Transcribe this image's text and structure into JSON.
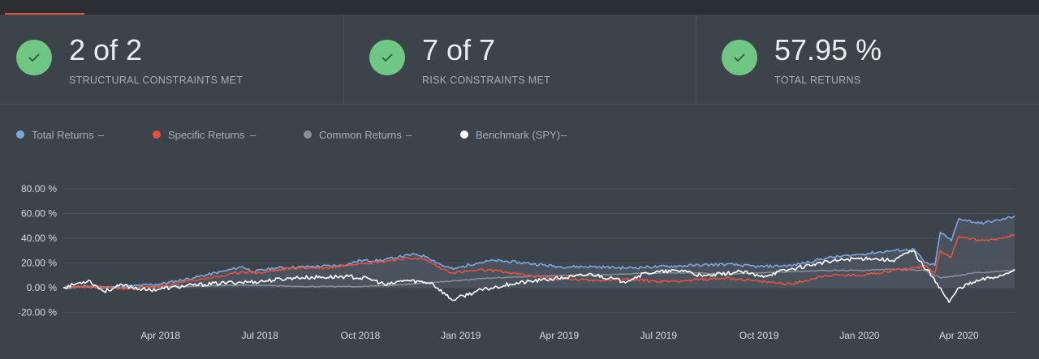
{
  "stats": [
    {
      "value": "2 of 2",
      "label": "STRUCTURAL CONSTRAINTS MET",
      "icon": "check-icon"
    },
    {
      "value": "7 of 7",
      "label": "RISK CONSTRAINTS MET",
      "icon": "check-icon"
    },
    {
      "value": "57.95 %",
      "label": "TOTAL RETURNS",
      "icon": "check-icon"
    }
  ],
  "legend": [
    {
      "name": "Total Returns",
      "value": "–",
      "color": "#7ba7e0"
    },
    {
      "name": "Specific Returns",
      "value": "–",
      "color": "#e5533d"
    },
    {
      "name": "Common Returns",
      "value": "–",
      "color": "#8a9099"
    },
    {
      "name": "Benchmark (SPY)",
      "value": "–",
      "color": "#ffffff"
    }
  ],
  "colors": {
    "background": "#3d434b",
    "accent": "#e5533d",
    "success": "#6fc783"
  },
  "chart_data": {
    "type": "line",
    "ylim": [
      -20,
      80
    ],
    "yticks": [
      "80.00 %",
      "60.00 %",
      "40.00 %",
      "20.00 %",
      "0.00 %",
      "-20.00 %"
    ],
    "ytick_values": [
      80,
      60,
      40,
      20,
      0,
      -20
    ],
    "xlim": [
      "2018-01-02",
      "2020-05-22"
    ],
    "xticks": [
      {
        "date": "2018-04-01",
        "label": "Apr 2018"
      },
      {
        "date": "2018-07-01",
        "label": "Jul 2018"
      },
      {
        "date": "2018-10-01",
        "label": "Oct 2018"
      },
      {
        "date": "2019-01-01",
        "label": "Jan 2019"
      },
      {
        "date": "2019-04-01",
        "label": "Apr 2019"
      },
      {
        "date": "2019-07-01",
        "label": "Jul 2019"
      },
      {
        "date": "2019-10-01",
        "label": "Oct 2019"
      },
      {
        "date": "2020-01-01",
        "label": "Jan 2020"
      },
      {
        "date": "2020-04-01",
        "label": "Apr 2020"
      }
    ],
    "grid": true,
    "series": [
      {
        "name": "Total Returns",
        "color": "#7ba7e0",
        "area": true,
        "points": [
          [
            "2018-01-02",
            0
          ],
          [
            "2018-01-20",
            1
          ],
          [
            "2018-02-10",
            0
          ],
          [
            "2018-03-01",
            1
          ],
          [
            "2018-04-01",
            3
          ],
          [
            "2018-05-01",
            8
          ],
          [
            "2018-06-01",
            14
          ],
          [
            "2018-06-15",
            17
          ],
          [
            "2018-06-25",
            13
          ],
          [
            "2018-07-15",
            16
          ],
          [
            "2018-08-15",
            17
          ],
          [
            "2018-09-15",
            18
          ],
          [
            "2018-10-01",
            22
          ],
          [
            "2018-10-20",
            22
          ],
          [
            "2018-11-05",
            25
          ],
          [
            "2018-11-20",
            27
          ],
          [
            "2018-12-01",
            25
          ],
          [
            "2018-12-15",
            18
          ],
          [
            "2018-12-25",
            15
          ],
          [
            "2019-01-15",
            20
          ],
          [
            "2019-02-01",
            22
          ],
          [
            "2019-03-01",
            20
          ],
          [
            "2019-04-01",
            17
          ],
          [
            "2019-05-01",
            17
          ],
          [
            "2019-06-01",
            16
          ],
          [
            "2019-07-01",
            17
          ],
          [
            "2019-08-01",
            18
          ],
          [
            "2019-09-01",
            19
          ],
          [
            "2019-10-01",
            17
          ],
          [
            "2019-11-01",
            18
          ],
          [
            "2019-12-01",
            24
          ],
          [
            "2020-01-01",
            27
          ],
          [
            "2020-02-01",
            30
          ],
          [
            "2020-02-20",
            31
          ],
          [
            "2020-03-01",
            20
          ],
          [
            "2020-03-10",
            18
          ],
          [
            "2020-03-15",
            45
          ],
          [
            "2020-03-25",
            38
          ],
          [
            "2020-04-01",
            56
          ],
          [
            "2020-04-20",
            52
          ],
          [
            "2020-05-10",
            55
          ],
          [
            "2020-05-22",
            58
          ]
        ]
      },
      {
        "name": "Specific Returns",
        "color": "#e5533d",
        "area": false,
        "points": [
          [
            "2018-01-02",
            0
          ],
          [
            "2018-01-20",
            1
          ],
          [
            "2018-02-10",
            0
          ],
          [
            "2018-03-01",
            -1
          ],
          [
            "2018-04-01",
            1
          ],
          [
            "2018-05-01",
            6
          ],
          [
            "2018-06-01",
            10
          ],
          [
            "2018-06-15",
            13
          ],
          [
            "2018-07-01",
            12
          ],
          [
            "2018-08-01",
            16
          ],
          [
            "2018-09-01",
            16
          ],
          [
            "2018-10-01",
            20
          ],
          [
            "2018-10-20",
            21
          ],
          [
            "2018-11-05",
            23
          ],
          [
            "2018-11-20",
            24
          ],
          [
            "2018-12-01",
            22
          ],
          [
            "2018-12-15",
            15
          ],
          [
            "2018-12-25",
            12
          ],
          [
            "2019-01-15",
            14
          ],
          [
            "2019-02-01",
            14
          ],
          [
            "2019-03-01",
            10
          ],
          [
            "2019-04-01",
            7
          ],
          [
            "2019-05-01",
            6
          ],
          [
            "2019-06-01",
            7
          ],
          [
            "2019-07-01",
            5
          ],
          [
            "2019-08-01",
            6
          ],
          [
            "2019-09-01",
            8
          ],
          [
            "2019-10-01",
            5
          ],
          [
            "2019-11-01",
            3
          ],
          [
            "2019-12-01",
            10
          ],
          [
            "2020-01-01",
            10
          ],
          [
            "2020-02-01",
            14
          ],
          [
            "2020-02-20",
            16
          ],
          [
            "2020-03-01",
            18
          ],
          [
            "2020-03-10",
            12
          ],
          [
            "2020-03-15",
            30
          ],
          [
            "2020-03-25",
            25
          ],
          [
            "2020-04-01",
            42
          ],
          [
            "2020-04-20",
            38
          ],
          [
            "2020-05-10",
            40
          ],
          [
            "2020-05-22",
            43
          ]
        ]
      },
      {
        "name": "Common Returns",
        "color": "#8a9099",
        "area": false,
        "points": [
          [
            "2018-01-02",
            0
          ],
          [
            "2018-02-01",
            1
          ],
          [
            "2018-03-01",
            0
          ],
          [
            "2018-04-01",
            1
          ],
          [
            "2018-05-01",
            1
          ],
          [
            "2018-06-01",
            2
          ],
          [
            "2018-07-01",
            2
          ],
          [
            "2018-08-01",
            1
          ],
          [
            "2018-09-01",
            1
          ],
          [
            "2018-10-01",
            1
          ],
          [
            "2018-11-01",
            2
          ],
          [
            "2018-12-01",
            4
          ],
          [
            "2019-01-01",
            6
          ],
          [
            "2019-02-01",
            8
          ],
          [
            "2019-03-01",
            9
          ],
          [
            "2019-04-01",
            10
          ],
          [
            "2019-05-01",
            10
          ],
          [
            "2019-06-01",
            11
          ],
          [
            "2019-07-01",
            12
          ],
          [
            "2019-08-01",
            12
          ],
          [
            "2019-09-01",
            11
          ],
          [
            "2019-10-01",
            12
          ],
          [
            "2019-11-01",
            13
          ],
          [
            "2019-12-01",
            14
          ],
          [
            "2020-01-01",
            14
          ],
          [
            "2020-02-01",
            15
          ],
          [
            "2020-03-01",
            14
          ],
          [
            "2020-03-15",
            8
          ],
          [
            "2020-03-25",
            9
          ],
          [
            "2020-04-15",
            12
          ],
          [
            "2020-05-22",
            14
          ]
        ]
      },
      {
        "name": "Benchmark (SPY)",
        "color": "#ffffff",
        "area": false,
        "points": [
          [
            "2018-01-02",
            0
          ],
          [
            "2018-01-25",
            6
          ],
          [
            "2018-02-08",
            -3
          ],
          [
            "2018-02-25",
            2
          ],
          [
            "2018-03-20",
            -2
          ],
          [
            "2018-04-10",
            0
          ],
          [
            "2018-05-01",
            2
          ],
          [
            "2018-06-01",
            4
          ],
          [
            "2018-07-01",
            5
          ],
          [
            "2018-08-01",
            8
          ],
          [
            "2018-09-20",
            9
          ],
          [
            "2018-10-10",
            7
          ],
          [
            "2018-10-25",
            2
          ],
          [
            "2018-11-10",
            6
          ],
          [
            "2018-12-05",
            4
          ],
          [
            "2018-12-24",
            -10
          ],
          [
            "2019-01-15",
            -3
          ],
          [
            "2019-02-15",
            3
          ],
          [
            "2019-03-15",
            6
          ],
          [
            "2019-04-15",
            9
          ],
          [
            "2019-05-01",
            11
          ],
          [
            "2019-05-30",
            5
          ],
          [
            "2019-06-20",
            12
          ],
          [
            "2019-07-25",
            14
          ],
          [
            "2019-08-10",
            9
          ],
          [
            "2019-09-15",
            13
          ],
          [
            "2019-10-02",
            9
          ],
          [
            "2019-10-25",
            14
          ],
          [
            "2019-11-20",
            19
          ],
          [
            "2019-12-20",
            23
          ],
          [
            "2020-01-10",
            24
          ],
          [
            "2020-01-31",
            22
          ],
          [
            "2020-02-19",
            30
          ],
          [
            "2020-02-28",
            18
          ],
          [
            "2020-03-09",
            8
          ],
          [
            "2020-03-23",
            -12
          ],
          [
            "2020-04-01",
            0
          ],
          [
            "2020-04-20",
            6
          ],
          [
            "2020-05-10",
            10
          ],
          [
            "2020-05-22",
            15
          ]
        ]
      }
    ]
  }
}
